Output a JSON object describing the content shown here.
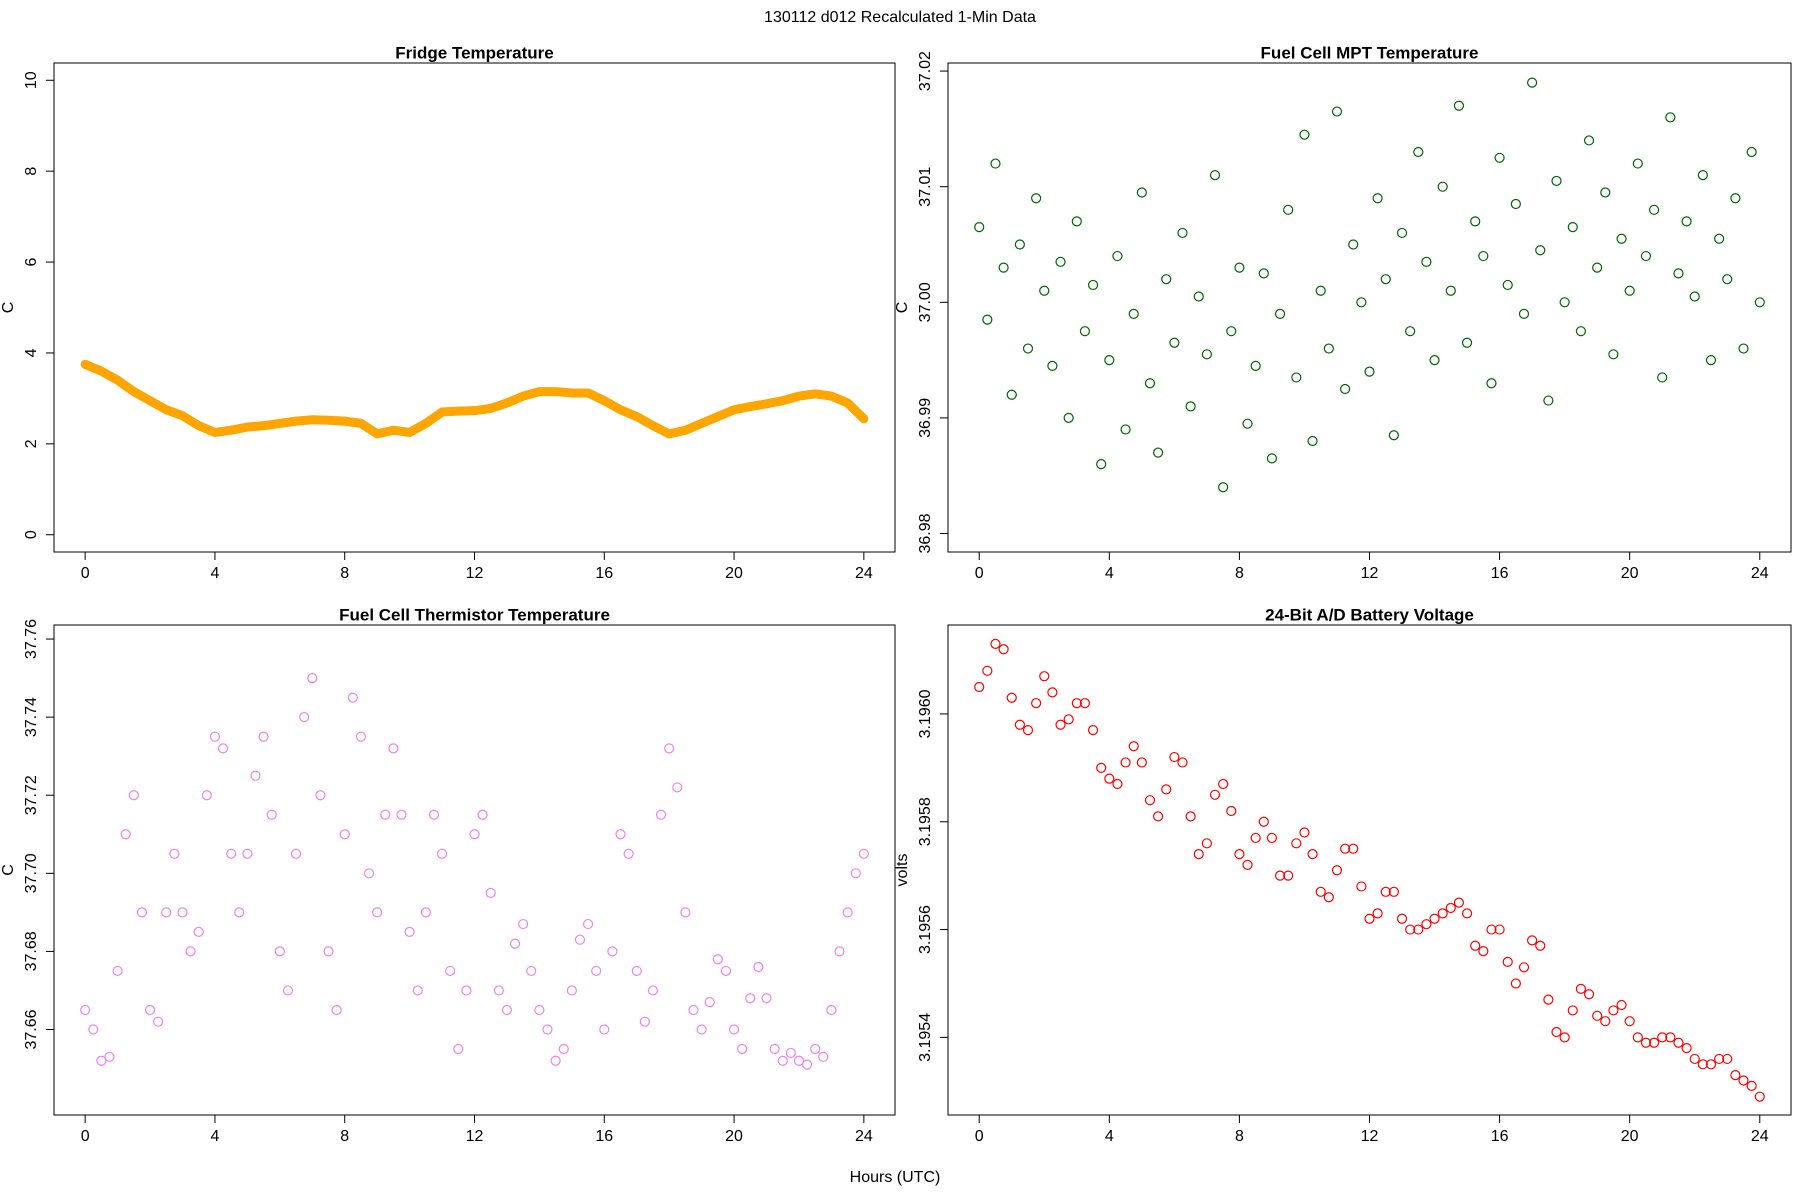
{
  "title": "130112   d012   Recalculated 1-Min Data",
  "xlabel": "Hours (UTC)",
  "chart_data": [
    {
      "type": "line",
      "title": "Fridge Temperature",
      "ylabel": "C",
      "color": "#ffa500",
      "xlim": [
        -0.96,
        24.96
      ],
      "xticks": [
        0,
        4,
        8,
        12,
        16,
        20,
        24
      ],
      "ylim": [
        -0.38,
        10.38
      ],
      "yticks": [
        0,
        2,
        4,
        6,
        8,
        10
      ],
      "x": [
        0,
        0.5,
        1,
        1.5,
        2,
        2.5,
        3,
        3.5,
        4,
        4.5,
        5,
        5.5,
        6,
        6.5,
        7,
        7.5,
        8,
        8.5,
        9,
        9.5,
        10,
        10.5,
        11,
        11.5,
        12,
        12.5,
        13,
        13.5,
        14,
        14.5,
        15,
        15.5,
        16,
        16.5,
        17,
        17.5,
        18,
        18.5,
        19,
        19.5,
        20,
        20.5,
        21,
        21.5,
        22,
        22.5,
        23,
        23.5,
        24
      ],
      "values": [
        3.75,
        3.6,
        3.4,
        3.15,
        2.95,
        2.75,
        2.62,
        2.4,
        2.25,
        2.3,
        2.37,
        2.4,
        2.45,
        2.5,
        2.53,
        2.52,
        2.5,
        2.45,
        2.22,
        2.3,
        2.25,
        2.45,
        2.7,
        2.72,
        2.73,
        2.78,
        2.9,
        3.05,
        3.15,
        3.15,
        3.12,
        3.12,
        2.95,
        2.75,
        2.6,
        2.4,
        2.22,
        2.3,
        2.45,
        2.6,
        2.75,
        2.82,
        2.88,
        2.95,
        3.05,
        3.1,
        3.05,
        2.9,
        2.55
      ]
    },
    {
      "type": "scatter",
      "title": "Fuel Cell MPT Temperature",
      "ylabel": "C",
      "color": "#006400",
      "xlim": [
        -0.96,
        24.96
      ],
      "xticks": [
        0,
        4,
        8,
        12,
        16,
        20,
        24
      ],
      "ylim": [
        36.9784,
        37.0207
      ],
      "yticks": [
        36.98,
        36.99,
        {
          "value": 37,
          "label": "37.00"
        },
        37.01,
        37.02
      ],
      "x": [
        0,
        0.25,
        0.5,
        0.75,
        1,
        1.25,
        1.5,
        1.75,
        2,
        2.25,
        2.5,
        2.75,
        3,
        3.25,
        3.5,
        3.75,
        4,
        4.25,
        4.5,
        4.75,
        5,
        5.25,
        5.5,
        5.75,
        6,
        6.25,
        6.5,
        6.75,
        7,
        7.25,
        7.5,
        7.75,
        8,
        8.25,
        8.5,
        8.75,
        9,
        9.25,
        9.5,
        9.75,
        10,
        10.25,
        10.5,
        10.75,
        11,
        11.25,
        11.5,
        11.75,
        12,
        12.25,
        12.5,
        12.75,
        13,
        13.25,
        13.5,
        13.75,
        14,
        14.25,
        14.5,
        14.75,
        15,
        15.25,
        15.5,
        15.75,
        16,
        16.25,
        16.5,
        16.75,
        17,
        17.25,
        17.5,
        17.75,
        18,
        18.25,
        18.5,
        18.75,
        19,
        19.25,
        19.5,
        19.75,
        20,
        20.25,
        20.5,
        20.75,
        21,
        21.25,
        21.5,
        21.75,
        22,
        22.25,
        22.5,
        22.75,
        23,
        23.25,
        23.5,
        23.75,
        24
      ],
      "values": [
        37.0065,
        36.9985,
        37.012,
        37.003,
        36.992,
        37.005,
        36.996,
        37.009,
        37.001,
        36.9945,
        37.0035,
        36.99,
        37.007,
        36.9975,
        37.0015,
        36.986,
        36.995,
        37.004,
        36.989,
        36.999,
        37.0095,
        36.993,
        36.987,
        37.002,
        36.9965,
        37.006,
        36.991,
        37.0005,
        36.9955,
        37.011,
        36.984,
        36.9975,
        37.003,
        36.9895,
        36.9945,
        37.0025,
        36.9865,
        36.999,
        37.008,
        36.9935,
        37.0145,
        36.988,
        37.001,
        36.996,
        37.0165,
        36.9925,
        37.005,
        37.0,
        36.994,
        37.009,
        37.002,
        36.9885,
        37.006,
        36.9975,
        37.013,
        37.0035,
        36.995,
        37.01,
        37.001,
        37.017,
        36.9965,
        37.007,
        37.004,
        36.993,
        37.0125,
        37.0015,
        37.0085,
        36.999,
        37.019,
        37.0045,
        36.9915,
        37.0105,
        37.0,
        37.0065,
        36.9975,
        37.014,
        37.003,
        37.0095,
        36.9955,
        37.0055,
        37.001,
        37.012,
        37.004,
        37.008,
        36.9935,
        37.016,
        37.0025,
        37.007,
        37.0005,
        37.011,
        36.995,
        37.0055,
        37.002,
        37.009,
        36.996,
        37.013,
        37.0
      ]
    },
    {
      "type": "scatter",
      "title": "Fuel Cell Thermistor Temperature",
      "ylabel": "C",
      "color": "#ee82ee",
      "xlim": [
        -0.96,
        24.96
      ],
      "xticks": [
        0,
        4,
        8,
        12,
        16,
        20,
        24
      ],
      "ylim": [
        37.6381,
        37.7636
      ],
      "yticks": [
        37.66,
        37.68,
        {
          "value": 37.7,
          "label": "37.70"
        },
        37.72,
        37.74,
        37.76
      ],
      "x": [
        0,
        0.25,
        0.5,
        0.75,
        1,
        1.25,
        1.5,
        1.75,
        2,
        2.25,
        2.5,
        2.75,
        3,
        3.25,
        3.5,
        3.75,
        4,
        4.25,
        4.5,
        4.75,
        5,
        5.25,
        5.5,
        5.75,
        6,
        6.25,
        6.5,
        6.75,
        7,
        7.25,
        7.5,
        7.75,
        8,
        8.25,
        8.5,
        8.75,
        9,
        9.25,
        9.5,
        9.75,
        10,
        10.25,
        10.5,
        10.75,
        11,
        11.25,
        11.5,
        11.75,
        12,
        12.25,
        12.5,
        12.75,
        13,
        13.25,
        13.5,
        13.75,
        14,
        14.25,
        14.5,
        14.75,
        15,
        15.25,
        15.5,
        15.75,
        16,
        16.25,
        16.5,
        16.75,
        17,
        17.25,
        17.5,
        17.75,
        18,
        18.25,
        18.5,
        18.75,
        19,
        19.25,
        19.5,
        19.75,
        20,
        20.25,
        20.5,
        20.75,
        21,
        21.25,
        21.5,
        21.75,
        22,
        22.25,
        22.5,
        22.75,
        23,
        23.25,
        23.5,
        23.75,
        24
      ],
      "values": [
        37.665,
        37.66,
        37.652,
        37.653,
        37.675,
        37.71,
        37.72,
        37.69,
        37.665,
        37.662,
        37.69,
        37.705,
        37.69,
        37.68,
        37.685,
        37.72,
        37.735,
        37.732,
        37.705,
        37.69,
        37.705,
        37.725,
        37.735,
        37.715,
        37.68,
        37.67,
        37.705,
        37.74,
        37.75,
        37.72,
        37.68,
        37.665,
        37.71,
        37.745,
        37.735,
        37.7,
        37.69,
        37.715,
        37.732,
        37.715,
        37.685,
        37.67,
        37.69,
        37.715,
        37.705,
        37.675,
        37.655,
        37.67,
        37.71,
        37.715,
        37.695,
        37.67,
        37.665,
        37.682,
        37.687,
        37.675,
        37.665,
        37.66,
        37.652,
        37.655,
        37.67,
        37.683,
        37.687,
        37.675,
        37.66,
        37.68,
        37.71,
        37.705,
        37.675,
        37.662,
        37.67,
        37.715,
        37.732,
        37.722,
        37.69,
        37.665,
        37.66,
        37.667,
        37.678,
        37.675,
        37.66,
        37.655,
        37.668,
        37.676,
        37.668,
        37.655,
        37.652,
        37.654,
        37.652,
        37.651,
        37.655,
        37.653,
        37.665,
        37.68,
        37.69,
        37.7,
        37.705
      ]
    },
    {
      "type": "scatter",
      "title": "24-Bit A/D Battery Voltage",
      "ylabel": "volts",
      "color": "#ff0000",
      "xlim": [
        -0.96,
        24.96
      ],
      "xticks": [
        0,
        4,
        8,
        12,
        16,
        20,
        24
      ],
      "ylim": [
        3.195256,
        3.196165
      ],
      "yticks": [
        3.1954,
        3.1956,
        3.1958,
        {
          "value": 3.196,
          "label": "3.1960"
        }
      ],
      "x": [
        0,
        0.25,
        0.5,
        0.75,
        1,
        1.25,
        1.5,
        1.75,
        2,
        2.25,
        2.5,
        2.75,
        3,
        3.25,
        3.5,
        3.75,
        4,
        4.25,
        4.5,
        4.75,
        5,
        5.25,
        5.5,
        5.75,
        6,
        6.25,
        6.5,
        6.75,
        7,
        7.25,
        7.5,
        7.75,
        8,
        8.25,
        8.5,
        8.75,
        9,
        9.25,
        9.5,
        9.75,
        10,
        10.25,
        10.5,
        10.75,
        11,
        11.25,
        11.5,
        11.75,
        12,
        12.25,
        12.5,
        12.75,
        13,
        13.25,
        13.5,
        13.75,
        14,
        14.25,
        14.5,
        14.75,
        15,
        15.25,
        15.5,
        15.75,
        16,
        16.25,
        16.5,
        16.75,
        17,
        17.25,
        17.5,
        17.75,
        18,
        18.25,
        18.5,
        18.75,
        19,
        19.25,
        19.5,
        19.75,
        20,
        20.25,
        20.5,
        20.75,
        21,
        21.25,
        21.5,
        21.75,
        22,
        22.25,
        22.5,
        22.75,
        23,
        23.25,
        23.5,
        23.75,
        24
      ],
      "values": [
        3.19605,
        3.19608,
        3.19613,
        3.19612,
        3.19603,
        3.19598,
        3.19597,
        3.19602,
        3.19607,
        3.19604,
        3.19598,
        3.19599,
        3.19602,
        3.19602,
        3.19597,
        3.1959,
        3.19588,
        3.19587,
        3.19591,
        3.19594,
        3.19591,
        3.19584,
        3.19581,
        3.19586,
        3.19592,
        3.19591,
        3.19581,
        3.19574,
        3.19576,
        3.19585,
        3.19587,
        3.19582,
        3.19574,
        3.19572,
        3.19577,
        3.1958,
        3.19577,
        3.1957,
        3.1957,
        3.19576,
        3.19578,
        3.19574,
        3.19567,
        3.19566,
        3.19571,
        3.19575,
        3.19575,
        3.19568,
        3.19562,
        3.19563,
        3.19567,
        3.19567,
        3.19562,
        3.1956,
        3.1956,
        3.19561,
        3.19562,
        3.19563,
        3.19564,
        3.19565,
        3.19563,
        3.19557,
        3.19556,
        3.1956,
        3.1956,
        3.19554,
        3.1955,
        3.19553,
        3.19558,
        3.19557,
        3.19547,
        3.19541,
        3.1954,
        3.19545,
        3.19549,
        3.19548,
        3.19544,
        3.19543,
        3.19545,
        3.19546,
        3.19543,
        3.1954,
        3.19539,
        3.19539,
        3.1954,
        3.1954,
        3.19539,
        3.19538,
        3.19536,
        3.19535,
        3.19535,
        3.19536,
        3.19536,
        3.19533,
        3.19532,
        3.19531,
        3.19529
      ]
    }
  ]
}
